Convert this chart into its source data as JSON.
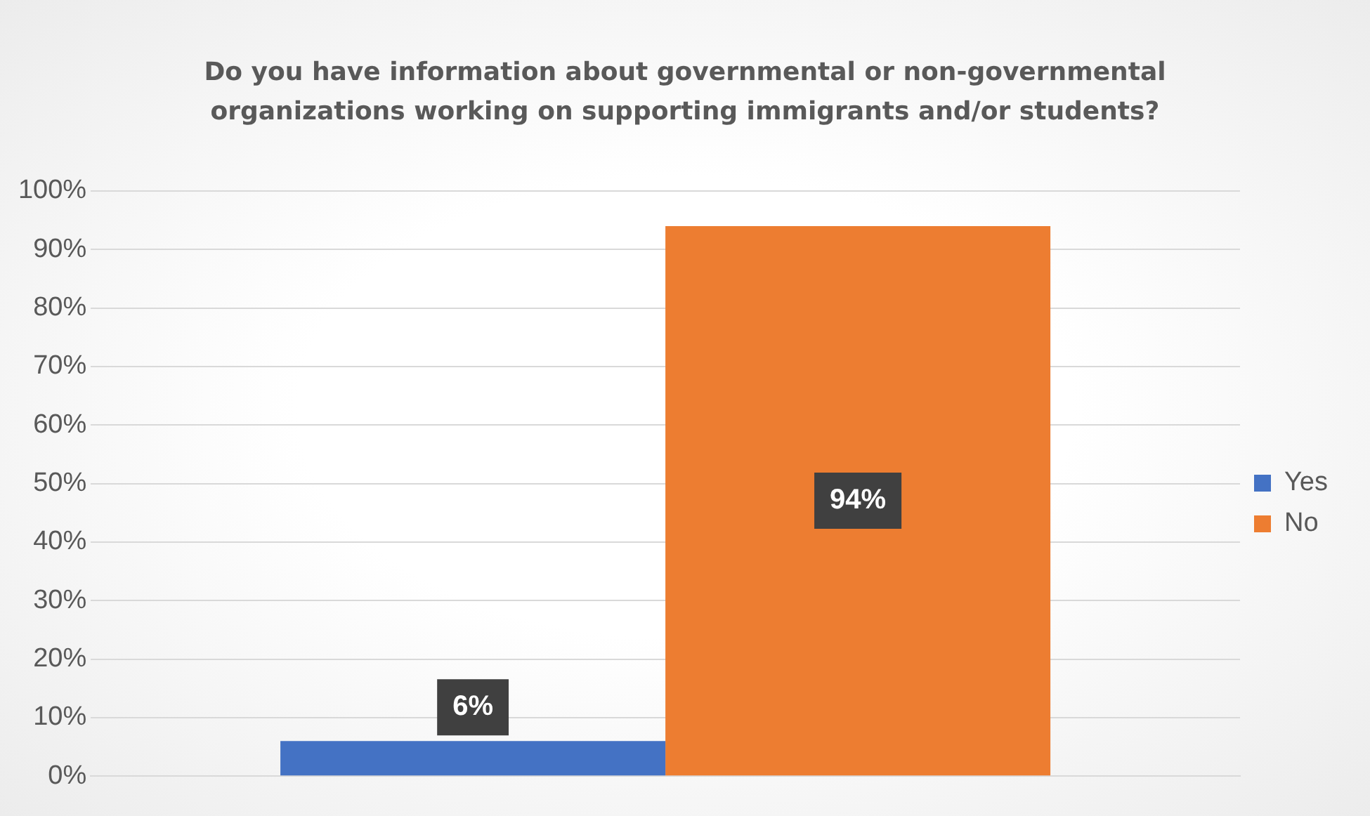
{
  "chart_data": {
    "type": "bar",
    "title": "Do you have information about governmental or non-governmental organizations working on supporting immigrants and/or students?",
    "categories": [
      null
    ],
    "series": [
      {
        "name": "Yes",
        "color": "#4472c4",
        "values": [
          6
        ],
        "value_labels": [
          "6%"
        ]
      },
      {
        "name": "No",
        "color": "#ed7d31",
        "values": [
          94
        ],
        "value_labels": [
          "94%"
        ]
      }
    ],
    "ylim": [
      0,
      100
    ],
    "yticks": [
      {
        "value": 0,
        "label": "0%"
      },
      {
        "value": 10,
        "label": "10%"
      },
      {
        "value": 20,
        "label": "20%"
      },
      {
        "value": 30,
        "label": "30%"
      },
      {
        "value": 40,
        "label": "40%"
      },
      {
        "value": 50,
        "label": "50%"
      },
      {
        "value": 60,
        "label": "60%"
      },
      {
        "value": 70,
        "label": "70%"
      },
      {
        "value": 80,
        "label": "80%"
      },
      {
        "value": 90,
        "label": "90%"
      },
      {
        "value": 100,
        "label": "100%"
      }
    ],
    "grid": "y",
    "legend": "right"
  }
}
